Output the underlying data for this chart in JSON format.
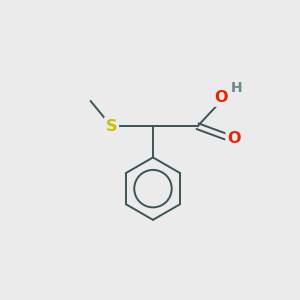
{
  "background_color": "#ebebeb",
  "bond_color": "#3a5555",
  "sulfur_color": "#c8c000",
  "oxygen_color": "#ee2200",
  "hydrogen_color": "#6a8888",
  "label_S": "S",
  "label_O_carbonyl": "O",
  "label_O_hydroxyl": "O",
  "label_H": "H",
  "figsize": [
    3.0,
    3.0
  ],
  "dpi": 100
}
